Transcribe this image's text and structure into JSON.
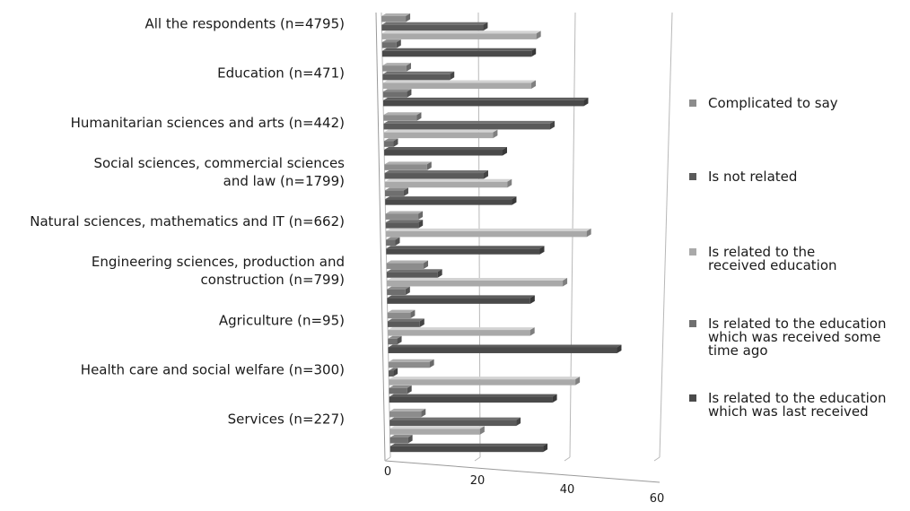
{
  "chart_data": {
    "type": "bar",
    "orientation": "horizontal",
    "title": "",
    "xlabel": "",
    "ylabel": "",
    "xlim": [
      0,
      60
    ],
    "xticks": [
      0,
      20,
      40,
      60
    ],
    "grid": true,
    "legend_position": "right",
    "categories": [
      [
        "All the respondents (n=4795)"
      ],
      [
        "Education (n=471)"
      ],
      [
        "Humanitarian sciences and arts (n=442)"
      ],
      [
        "Social sciences, commercial sciences",
        "and law (n=1799)"
      ],
      [
        "Natural sciences, mathematics and IT (n=662)"
      ],
      [
        "Engineering sciences, production and",
        "construction (n=799)"
      ],
      [
        "Agriculture (n=95)"
      ],
      [
        "Health care and social welfare (n=300)"
      ],
      [
        "Services (n=227)"
      ]
    ],
    "series": [
      {
        "name": [
          "Complicated to say"
        ],
        "color": "#8c8c8c",
        "values": [
          5,
          5,
          7,
          9,
          7,
          8,
          5,
          9,
          7
        ]
      },
      {
        "name": [
          "Is not related"
        ],
        "color": "#5a5a5a",
        "values": [
          21,
          14,
          35,
          21,
          7,
          11,
          7,
          1,
          28
        ]
      },
      {
        "name": [
          "Is related to the",
          "received education"
        ],
        "color": "#a9a9a9",
        "values": [
          32,
          31,
          23,
          26,
          43,
          38,
          31,
          41,
          20
        ]
      },
      {
        "name": [
          "Is related to the education",
          "which was received some",
          "time ago"
        ],
        "color": "#6f6f6f",
        "values": [
          3,
          5,
          2,
          4,
          2,
          4,
          2,
          4,
          4
        ]
      },
      {
        "name": [
          "Is related to the education",
          "which was last received"
        ],
        "color": "#4a4a4a",
        "values": [
          31,
          42,
          25,
          27,
          33,
          31,
          50,
          36,
          34
        ]
      }
    ]
  }
}
